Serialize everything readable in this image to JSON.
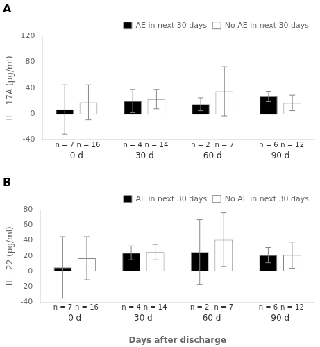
{
  "chart_data": [
    {
      "type": "bar",
      "title": "A",
      "categories": [
        "0 d",
        "30 d",
        "60 d",
        "90 d"
      ],
      "ylabel": "IL - 17A (pg/ml)",
      "series": [
        {
          "name": "AE in next 30 days",
          "color": "#000000",
          "values": [
            7,
            20,
            15,
            27
          ],
          "errors": [
            38,
            18,
            10,
            8
          ],
          "annotations": [
            "n = 7",
            "n = 4",
            "n = 2",
            "n = 6"
          ]
        },
        {
          "name": "No AE in next 30 days",
          "color": "#ffffff",
          "values": [
            18,
            23,
            35,
            17
          ],
          "errors": [
            27,
            15,
            38,
            12
          ],
          "annotations": [
            "n = 16",
            "n = 14",
            "n = 7",
            "n = 12"
          ]
        }
      ],
      "ylim": [
        -40,
        120
      ],
      "yticks": [
        -40,
        0,
        40,
        80,
        120
      ],
      "grid": false,
      "legend": "upper right"
    },
    {
      "type": "bar",
      "title": "B",
      "categories": [
        "0 d",
        "30 d",
        "60 d",
        "90 d"
      ],
      "ylabel": "IL - 22 (pg/ml)",
      "xlabel": "Days after discharge",
      "series": [
        {
          "name": "AE in next 30 days",
          "color": "#000000",
          "values": [
            5,
            24,
            25,
            21
          ],
          "errors": [
            40,
            9,
            42,
            10
          ],
          "annotations": [
            "n = 7",
            "n = 4",
            "n = 2",
            "n = 6"
          ]
        },
        {
          "name": "No AE in next 30 days",
          "color": "#ffffff",
          "values": [
            17,
            25,
            41,
            21
          ],
          "errors": [
            28,
            10,
            35,
            17
          ],
          "annotations": [
            "n = 16",
            "n = 14",
            "n = 7",
            "n = 12"
          ]
        }
      ],
      "ylim": [
        -40,
        80
      ],
      "yticks": [
        -40,
        -20,
        0,
        20,
        40,
        60,
        80
      ],
      "grid": false,
      "legend": "upper right"
    }
  ]
}
